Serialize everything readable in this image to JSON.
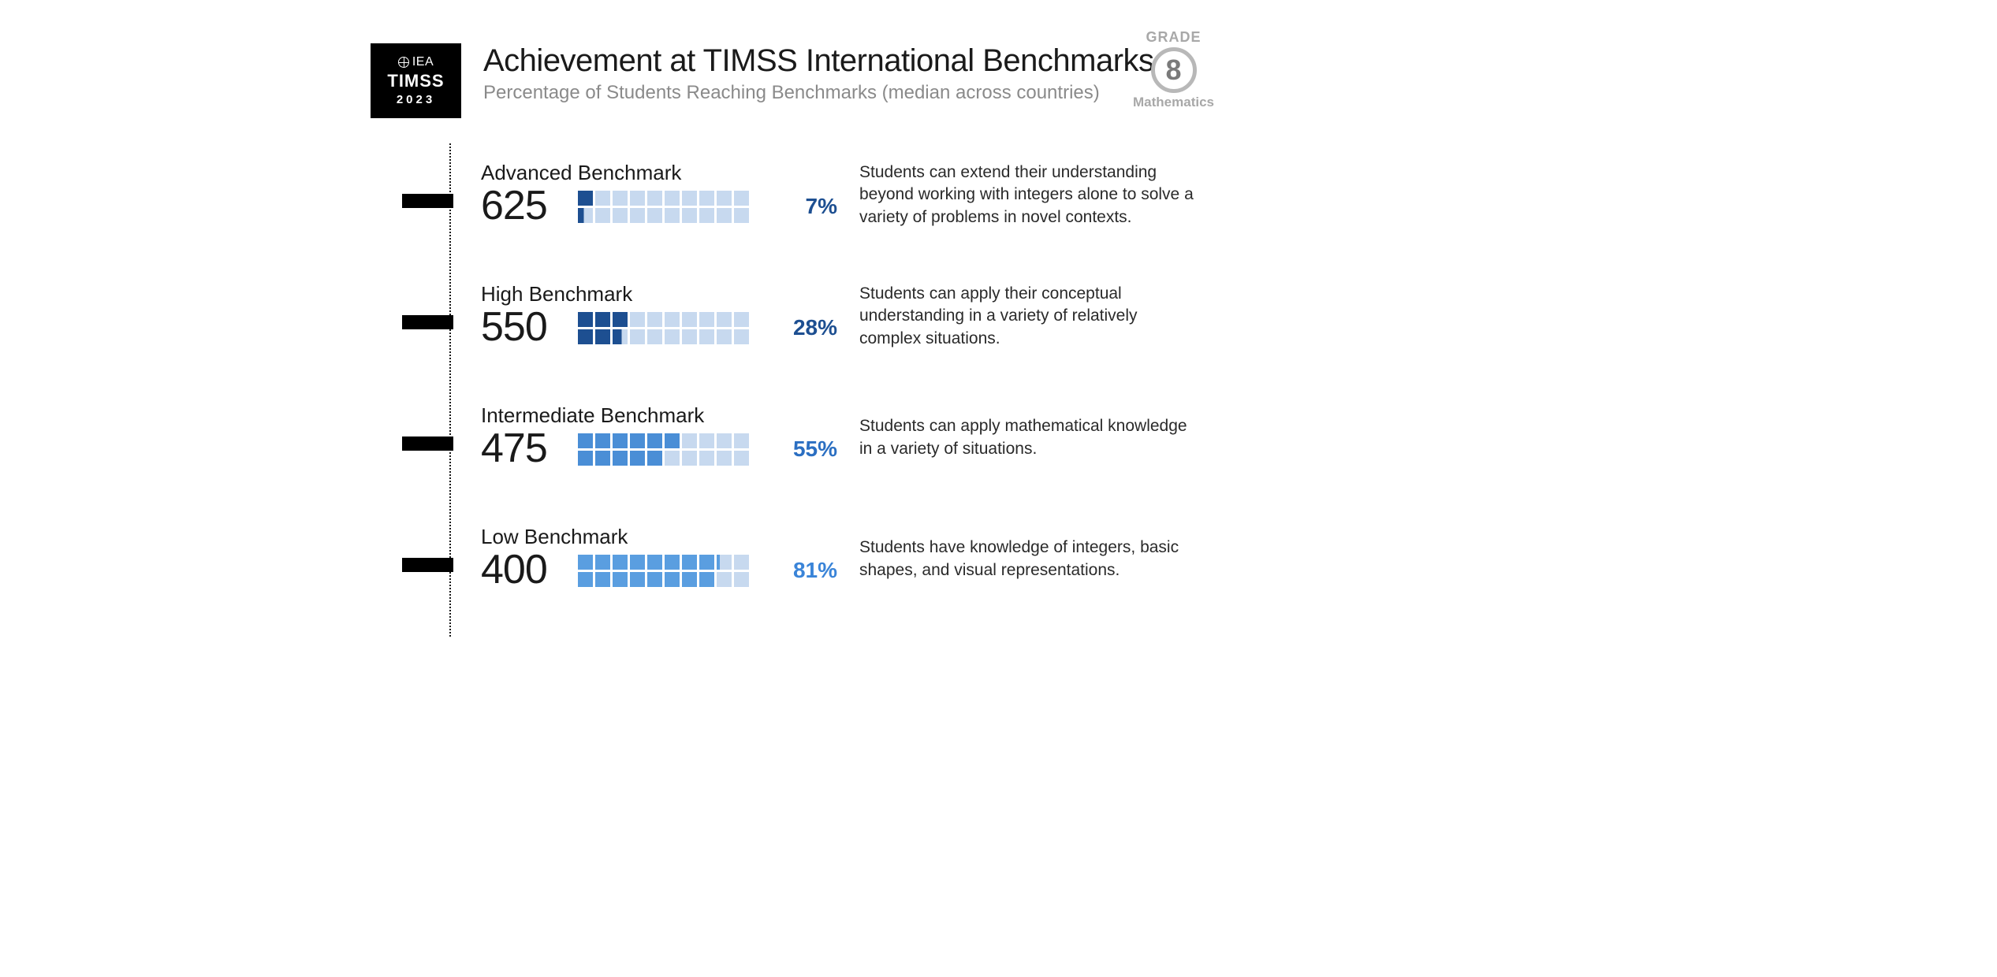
{
  "logo": {
    "org": "IEA",
    "name": "TIMSS",
    "year": "2023"
  },
  "title": "Achievement at TIMSS International Benchmarks",
  "subtitle": "Percentage of Students Reaching Benchmarks (median across countries)",
  "badge": {
    "grade_label": "GRADE",
    "grade": "8",
    "subject": "Mathematics"
  },
  "waffle": {
    "total_cells": 20,
    "cell_value_percent": 5,
    "empty_color": "#c7d9ef",
    "colors": {
      "advanced": "#1d4f91",
      "high": "#1d4f91",
      "intermediate": "#4a8ed6",
      "low": "#5a9ee0"
    }
  },
  "pct_colors": {
    "advanced": "#1d4f91",
    "high": "#1d4f91",
    "intermediate": "#2b6fc2",
    "low": "#3a84d8"
  },
  "benchmarks": [
    {
      "key": "advanced",
      "name": "Advanced Benchmark",
      "score": "625",
      "percent": 7,
      "percent_label": "7%",
      "partial_fill_ratio": 0.4,
      "desc": "Students can extend their understanding beyond working with integers alone to solve a variety of problems in novel contexts."
    },
    {
      "key": "high",
      "name": "High Benchmark",
      "score": "550",
      "percent": 28,
      "percent_label": "28%",
      "partial_fill_ratio": 0.6,
      "desc": "Students can apply their conceptual understanding in a variety of relatively complex situations."
    },
    {
      "key": "intermediate",
      "name": "Intermediate Benchmark",
      "score": "475",
      "percent": 55,
      "percent_label": "55%",
      "partial_fill_ratio": 1.0,
      "desc": "Students can apply mathematical knowledge in a variety of situations."
    },
    {
      "key": "low",
      "name": "Low Benchmark",
      "score": "400",
      "percent": 81,
      "percent_label": "81%",
      "partial_fill_ratio": 0.2,
      "desc": "Students have knowledge of integers, basic shapes, and visual representations."
    }
  ]
}
